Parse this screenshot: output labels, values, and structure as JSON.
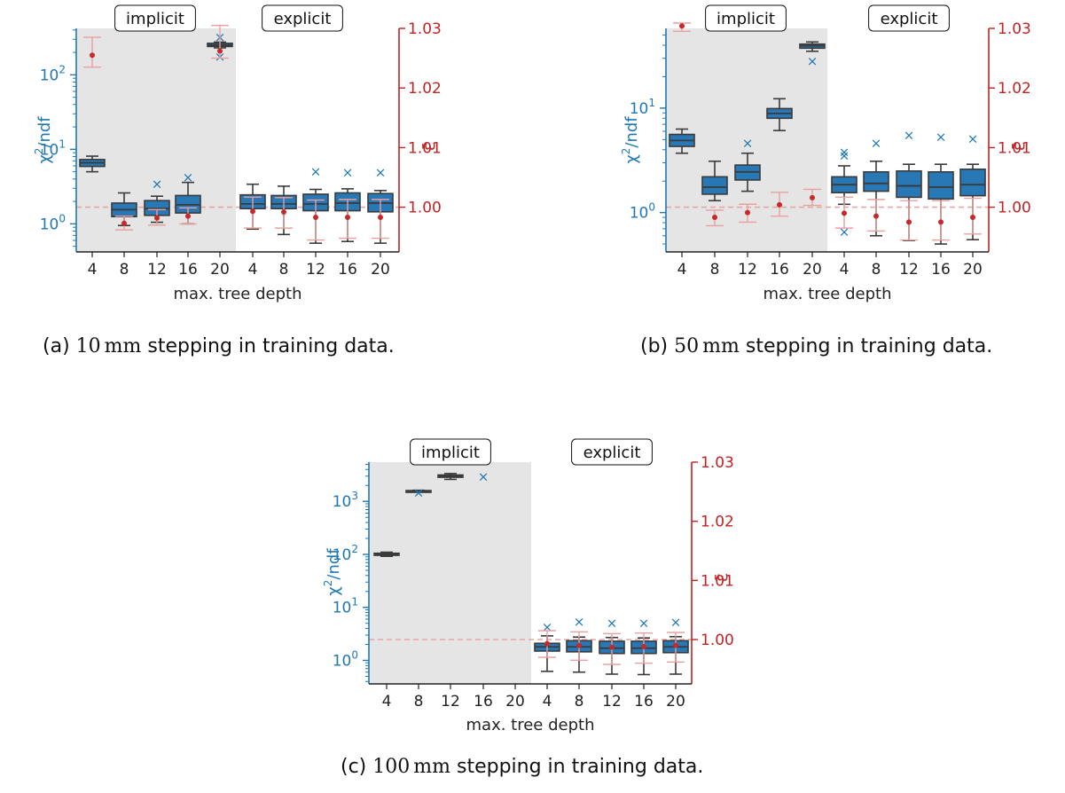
{
  "chart_data": [
    {
      "id": "a",
      "type": "box",
      "caption": {
        "prefix": "(a) ",
        "value": "10",
        "unit": "mm",
        "suffix": " stepping in training data."
      },
      "group_labels": [
        "implicit",
        "explicit"
      ],
      "categories": [
        "4",
        "8",
        "12",
        "16",
        "20",
        "4",
        "8",
        "12",
        "16",
        "20"
      ],
      "xlabel": "max. tree depth",
      "ylabel_left": "χ2/ndf",
      "ylabel_right": "ε̄",
      "y_left_scale": "log",
      "y_left_ticks": [
        1,
        10,
        100
      ],
      "y_left_range": [
        0.42,
        420
      ],
      "y_right_ticks": [
        1.0,
        1.01,
        1.02,
        1.03
      ],
      "y_right_range": [
        0.9925,
        1.03
      ],
      "reference_line": 1.0,
      "shaded_group": "implicit",
      "boxes": [
        {
          "whislo": 5.0,
          "q1": 5.9,
          "med": 6.6,
          "q3": 7.3,
          "whishi": 8.1,
          "fliers": []
        },
        {
          "whislo": 0.95,
          "q1": 1.25,
          "med": 1.55,
          "q3": 1.9,
          "whishi": 2.6,
          "fliers": []
        },
        {
          "whislo": 1.05,
          "q1": 1.3,
          "med": 1.6,
          "q3": 2.05,
          "whishi": 2.35,
          "fliers": [
            3.4
          ]
        },
        {
          "whislo": 1.0,
          "q1": 1.4,
          "med": 1.8,
          "q3": 2.4,
          "whishi": 3.6,
          "fliers": [
            4.2
          ]
        },
        {
          "whislo": 230,
          "q1": 240,
          "med": 250,
          "q3": 265,
          "whishi": 275,
          "fliers": [
            175,
            320
          ]
        },
        {
          "whislo": 0.85,
          "q1": 1.6,
          "med": 1.85,
          "q3": 2.45,
          "whishi": 3.4,
          "fliers": []
        },
        {
          "whislo": 0.72,
          "q1": 1.6,
          "med": 1.85,
          "q3": 2.4,
          "whishi": 3.2,
          "fliers": []
        },
        {
          "whislo": 0.55,
          "q1": 1.5,
          "med": 1.85,
          "q3": 2.5,
          "whishi": 2.9,
          "fliers": [
            5.0
          ]
        },
        {
          "whislo": 0.58,
          "q1": 1.5,
          "med": 1.9,
          "q3": 2.6,
          "whishi": 2.95,
          "fliers": [
            4.9
          ]
        },
        {
          "whislo": 0.55,
          "q1": 1.45,
          "med": 1.9,
          "q3": 2.55,
          "whishi": 2.8,
          "fliers": [
            4.9
          ]
        }
      ],
      "eps": [
        {
          "mean": 1.0255,
          "lo": 1.0235,
          "hi": 1.0285
        },
        {
          "mean": 0.9973,
          "lo": 0.9962,
          "hi": 0.9985
        },
        {
          "mean": 0.9982,
          "lo": 0.997,
          "hi": 0.9996
        },
        {
          "mean": 0.9985,
          "lo": 0.9972,
          "hi": 0.9999
        },
        {
          "mean": 1.0262,
          "lo": 1.025,
          "hi": 1.0305
        },
        {
          "mean": 0.9993,
          "lo": 0.9965,
          "hi": 1.0017
        },
        {
          "mean": 0.9992,
          "lo": 0.9965,
          "hi": 1.0016
        },
        {
          "mean": 0.9983,
          "lo": 0.9945,
          "hi": 1.0012
        },
        {
          "mean": 0.9983,
          "lo": 0.9948,
          "hi": 1.0013
        },
        {
          "mean": 0.9983,
          "lo": 0.9948,
          "hi": 1.0013
        }
      ]
    },
    {
      "id": "b",
      "type": "box",
      "caption": {
        "prefix": "(b) ",
        "value": "50",
        "unit": "mm",
        "suffix": " stepping in training data."
      },
      "group_labels": [
        "implicit",
        "explicit"
      ],
      "categories": [
        "4",
        "8",
        "12",
        "16",
        "20",
        "4",
        "8",
        "12",
        "16",
        "20"
      ],
      "xlabel": "max. tree depth",
      "ylabel_left": "χ2/ndf",
      "ylabel_right": "ε̄",
      "y_left_scale": "log",
      "y_left_ticks": [
        1,
        10
      ],
      "y_left_range": [
        0.42,
        58
      ],
      "y_right_ticks": [
        1.0,
        1.01,
        1.02,
        1.03
      ],
      "y_right_range": [
        0.9925,
        1.03
      ],
      "reference_line": 1.0,
      "shaded_group": "implicit",
      "boxes": [
        {
          "whislo": 3.7,
          "q1": 4.3,
          "med": 4.9,
          "q3": 5.6,
          "whishi": 6.3,
          "fliers": []
        },
        {
          "whislo": 1.3,
          "q1": 1.5,
          "med": 1.75,
          "q3": 2.2,
          "whishi": 3.1,
          "fliers": []
        },
        {
          "whislo": 1.6,
          "q1": 2.05,
          "med": 2.45,
          "q3": 2.85,
          "whishi": 3.7,
          "fliers": [
            4.6
          ]
        },
        {
          "whislo": 6.1,
          "q1": 8.0,
          "med": 8.9,
          "q3": 9.9,
          "whishi": 12.3,
          "fliers": []
        },
        {
          "whislo": 35,
          "q1": 37.5,
          "med": 39.5,
          "q3": 41,
          "whishi": 43,
          "fliers": [
            28
          ]
        },
        {
          "whislo": 1.2,
          "q1": 1.55,
          "med": 1.85,
          "q3": 2.2,
          "whishi": 2.8,
          "fliers": [
            0.65,
            3.5,
            3.8
          ]
        },
        {
          "whislo": 0.6,
          "q1": 1.6,
          "med": 1.9,
          "q3": 2.45,
          "whishi": 3.1,
          "fliers": [
            4.6
          ]
        },
        {
          "whislo": 0.54,
          "q1": 1.4,
          "med": 1.8,
          "q3": 2.5,
          "whishi": 2.9,
          "fliers": [
            5.5
          ]
        },
        {
          "whislo": 0.5,
          "q1": 1.35,
          "med": 1.75,
          "q3": 2.45,
          "whishi": 2.9,
          "fliers": [
            5.3
          ]
        },
        {
          "whislo": 0.55,
          "q1": 1.45,
          "med": 1.85,
          "q3": 2.6,
          "whishi": 2.9,
          "fliers": [
            5.1
          ]
        }
      ],
      "eps": [
        {
          "mean": 1.0304,
          "lo": 1.0295,
          "hi": 1.0315
        },
        {
          "mean": 0.9983,
          "lo": 0.9969,
          "hi": 0.9995
        },
        {
          "mean": 0.9991,
          "lo": 0.9975,
          "hi": 1.0005
        },
        {
          "mean": 1.0004,
          "lo": 0.9985,
          "hi": 1.0025
        },
        {
          "mean": 1.0016,
          "lo": 1.0003,
          "hi": 1.003
        },
        {
          "mean": 0.999,
          "lo": 0.9965,
          "hi": 1.0017
        },
        {
          "mean": 0.9985,
          "lo": 0.996,
          "hi": 1.0013
        },
        {
          "mean": 0.9975,
          "lo": 0.9945,
          "hi": 1.0011
        },
        {
          "mean": 0.9975,
          "lo": 0.9945,
          "hi": 1.0011
        },
        {
          "mean": 0.9983,
          "lo": 0.9955,
          "hi": 1.0015
        }
      ]
    },
    {
      "id": "c",
      "type": "box",
      "caption": {
        "prefix": "(c) ",
        "value": "100",
        "unit": "mm",
        "suffix": " stepping in training data."
      },
      "group_labels": [
        "implicit",
        "explicit"
      ],
      "categories": [
        "4",
        "8",
        "12",
        "16",
        "20",
        "4",
        "8",
        "12",
        "16",
        "20"
      ],
      "xlabel": "max. tree depth",
      "ylabel_left": "χ2/ndf",
      "ylabel_right": "ε̄",
      "y_left_scale": "log",
      "y_left_ticks": [
        1,
        10,
        100,
        1000
      ],
      "y_left_range": [
        0.36,
        5500
      ],
      "y_right_ticks": [
        1.0,
        1.01,
        1.02,
        1.03
      ],
      "y_right_range": [
        0.9925,
        1.03
      ],
      "reference_line": 1.0,
      "shaded_group": "implicit",
      "boxes": [
        {
          "whislo": 92,
          "q1": 96,
          "med": 100,
          "q3": 105,
          "whishi": 110,
          "fliers": []
        },
        {
          "whislo": 1540,
          "q1": 1560,
          "med": 1580,
          "q3": 1600,
          "whishi": 1620,
          "fliers": [
            1450
          ]
        },
        {
          "whislo": 2600,
          "q1": 2850,
          "med": 3000,
          "q3": 3150,
          "whishi": 3350,
          "fliers": []
        },
        {
          "whislo": null,
          "q1": null,
          "med": null,
          "q3": null,
          "whishi": null,
          "fliers": [
            2900
          ]
        },
        null,
        {
          "whislo": 0.62,
          "q1": 1.5,
          "med": 1.8,
          "q3": 2.1,
          "whishi": 2.9,
          "fliers": [
            4.2
          ]
        },
        {
          "whislo": 0.6,
          "q1": 1.45,
          "med": 1.8,
          "q3": 2.35,
          "whishi": 2.75,
          "fliers": [
            5.3
          ]
        },
        {
          "whislo": 0.55,
          "q1": 1.35,
          "med": 1.7,
          "q3": 2.3,
          "whishi": 2.7,
          "fliers": [
            5.0
          ]
        },
        {
          "whislo": 0.54,
          "q1": 1.35,
          "med": 1.7,
          "q3": 2.3,
          "whishi": 2.65,
          "fliers": [
            5.0
          ]
        },
        {
          "whislo": 0.55,
          "q1": 1.4,
          "med": 1.8,
          "q3": 2.35,
          "whishi": 2.8,
          "fliers": [
            5.2
          ]
        }
      ],
      "eps": [
        null,
        null,
        null,
        null,
        null,
        {
          "mean": 0.9993,
          "lo": 0.997,
          "hi": 1.0015
        },
        {
          "mean": 0.999,
          "lo": 0.9965,
          "hi": 1.0013
        },
        {
          "mean": 0.9987,
          "lo": 0.9958,
          "hi": 1.001
        },
        {
          "mean": 0.9988,
          "lo": 0.996,
          "hi": 1.0011
        },
        {
          "mean": 0.999,
          "lo": 0.9962,
          "hi": 1.0012
        }
      ]
    }
  ],
  "colors": {
    "box_fill": "#2878b5",
    "box_edge": "#3a3a3a",
    "left_axis": "#1f77b4",
    "right_axis": "#c02324",
    "eps_point": "#c8282a",
    "eps_bar": "#e8a0a0",
    "shade": "#e5e5e5",
    "ref_line": "#e6a6a6"
  }
}
